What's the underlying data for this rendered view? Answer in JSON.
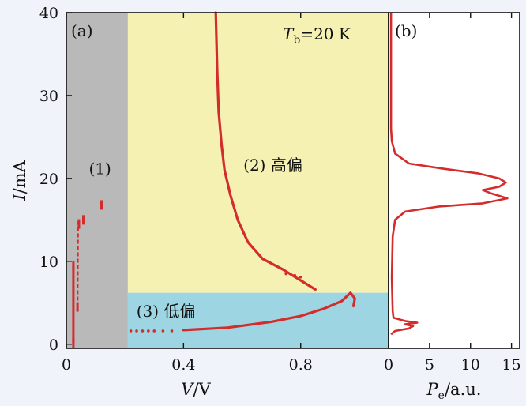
{
  "chart_data": [
    {
      "id": "a",
      "type": "scatter",
      "panel_label": "(a)",
      "xlabel": "V/V",
      "xlabel_var": "V",
      "xlabel_unit": "/V",
      "ylabel": "I/mA",
      "ylabel_var": "I",
      "ylabel_unit": "/mA",
      "xlim": [
        0,
        1.1
      ],
      "ylim": [
        -0.5,
        40
      ],
      "xticks": [
        0,
        0.4,
        0.8
      ],
      "xtick_labels": [
        "0",
        "0.4",
        "0.8"
      ],
      "yticks": [
        0,
        10,
        20,
        30,
        40
      ],
      "ytick_labels": [
        "0",
        "10",
        "20",
        "30",
        "40"
      ],
      "annotation": "Tb=20 K",
      "annotation_var": "T",
      "annotation_sub": "b",
      "annotation_rest": "=20 K",
      "regions": [
        {
          "name": "(1)",
          "color": "#b9b9b9",
          "x": [
            0,
            0.21
          ],
          "y": [
            -0.5,
            40
          ],
          "label_at": [
            0.115,
            21.2
          ]
        },
        {
          "name": "(2) 高偏",
          "color": "#f4f1b3",
          "x": [
            0.21,
            1.1
          ],
          "y": [
            6.2,
            40
          ],
          "label_at": [
            0.705,
            21.6
          ]
        },
        {
          "name": "(3) 低偏",
          "color": "#9dd6e2",
          "x": [
            0.21,
            1.1
          ],
          "y": [
            -0.5,
            6.2
          ],
          "label_at": [
            0.34,
            4.0
          ]
        }
      ],
      "series": [
        {
          "name": "region-1-steps",
          "color": "#d42b2b",
          "points": [
            [
              0.024,
              0.1
            ],
            [
              0.024,
              9.5
            ],
            [
              0.038,
              4.5
            ],
            [
              0.043,
              14.5
            ],
            [
              0.058,
              15.0
            ],
            [
              0.12,
              16.8
            ]
          ]
        },
        {
          "name": "high-bias-branch",
          "color": "#d42b2b",
          "points": [
            [
              0.51,
              40
            ],
            [
              0.515,
              33
            ],
            [
              0.52,
              28
            ],
            [
              0.53,
              24
            ],
            [
              0.54,
              21
            ],
            [
              0.56,
              18
            ],
            [
              0.585,
              15
            ],
            [
              0.62,
              12.3
            ],
            [
              0.67,
              10.3
            ],
            [
              0.74,
              9.0
            ],
            [
              0.8,
              7.7
            ],
            [
              0.85,
              6.6
            ]
          ]
        },
        {
          "name": "low-bias-branch",
          "color": "#d42b2b",
          "points": [
            [
              0.4,
              1.7
            ],
            [
              0.55,
              2.0
            ],
            [
              0.7,
              2.7
            ],
            [
              0.8,
              3.4
            ],
            [
              0.88,
              4.3
            ],
            [
              0.94,
              5.2
            ],
            [
              0.97,
              6.2
            ],
            [
              0.985,
              5.5
            ],
            [
              0.98,
              4.6
            ]
          ]
        },
        {
          "name": "scattered-dots",
          "color": "#d42b2b",
          "points": [
            [
              0.22,
              1.6
            ],
            [
              0.24,
              1.6
            ],
            [
              0.26,
              1.6
            ],
            [
              0.28,
              1.6
            ],
            [
              0.3,
              1.6
            ],
            [
              0.33,
              1.6
            ],
            [
              0.36,
              1.6
            ],
            [
              0.75,
              8.5
            ],
            [
              0.78,
              8.3
            ],
            [
              0.8,
              8.1
            ]
          ]
        }
      ]
    },
    {
      "id": "b",
      "type": "line",
      "panel_label": "(b)",
      "xlabel": "Pe/a.u.",
      "xlabel_var": "P",
      "xlabel_sub": "e",
      "xlabel_unit": "/a.u.",
      "xlim": [
        0,
        16
      ],
      "ylim": [
        -0.5,
        40
      ],
      "xticks": [
        0,
        5,
        10,
        15
      ],
      "xtick_labels": [
        "0",
        "5",
        "10",
        "15"
      ],
      "series": [
        {
          "name": "emission",
          "color": "#d42b2b",
          "points": [
            [
              0.3,
              40
            ],
            [
              0.3,
              26
            ],
            [
              0.4,
              24.5
            ],
            [
              0.8,
              23
            ],
            [
              2.5,
              21.8
            ],
            [
              6.5,
              21.2
            ],
            [
              11,
              20.6
            ],
            [
              13.5,
              20.0
            ],
            [
              14.3,
              19.5
            ],
            [
              13.5,
              19.0
            ],
            [
              11.5,
              18.6
            ],
            [
              12.5,
              18.2
            ],
            [
              14.5,
              17.6
            ],
            [
              11.5,
              17.0
            ],
            [
              6.0,
              16.6
            ],
            [
              2.0,
              16.0
            ],
            [
              0.8,
              15.0
            ],
            [
              0.5,
              13
            ],
            [
              0.4,
              8
            ],
            [
              0.5,
              4
            ],
            [
              0.6,
              3.2
            ],
            [
              2.0,
              2.8
            ],
            [
              3.5,
              2.6
            ],
            [
              2.0,
              2.4
            ],
            [
              3.0,
              2.2
            ],
            [
              2.5,
              1.9
            ],
            [
              0.8,
              1.6
            ],
            [
              0.3,
              1.2
            ]
          ]
        }
      ]
    }
  ]
}
